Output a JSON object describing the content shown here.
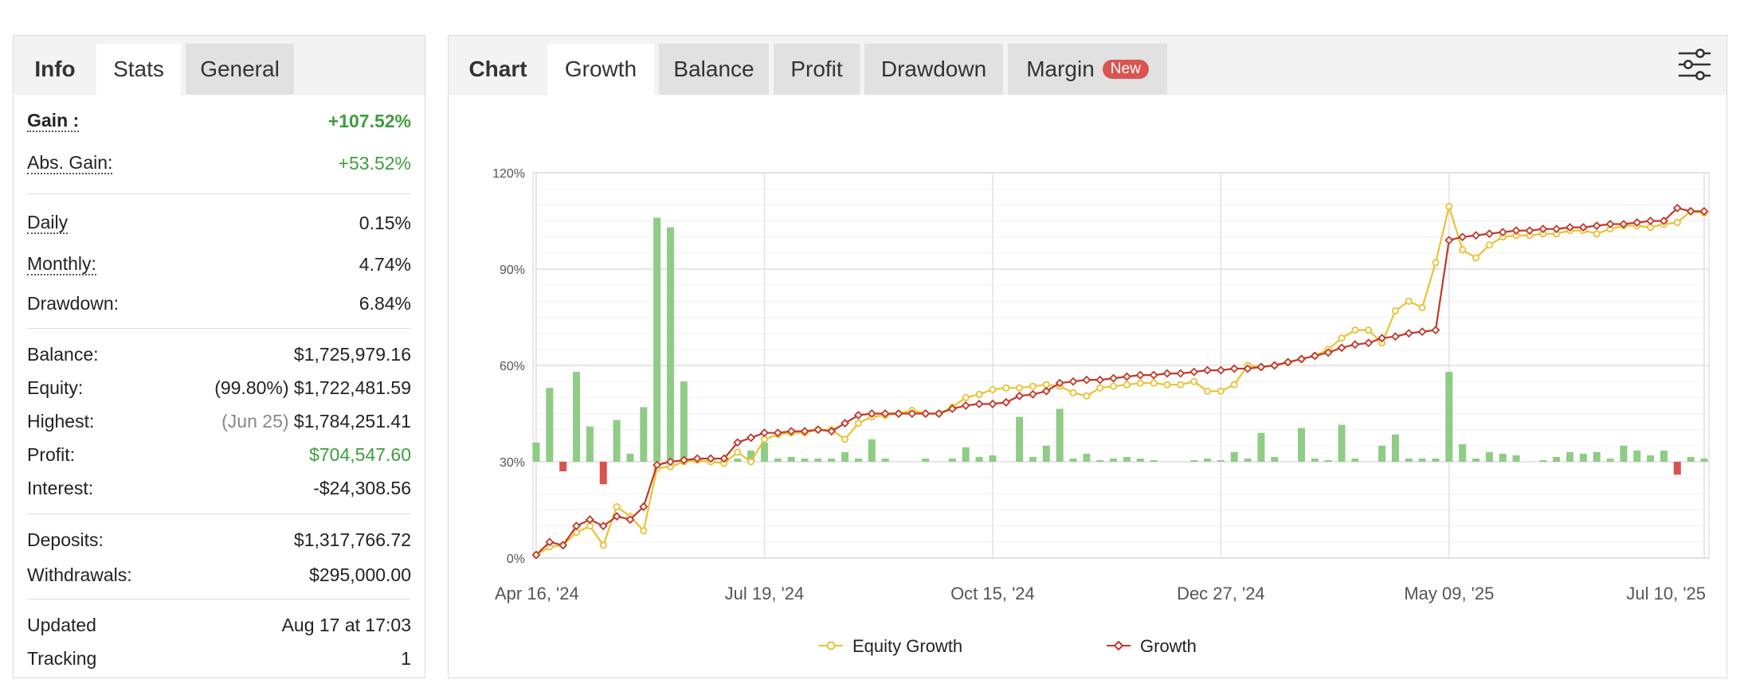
{
  "stats_panel": {
    "tabs": [
      {
        "label": "Info"
      },
      {
        "label": "Stats"
      },
      {
        "label": "General"
      }
    ],
    "rows": {
      "gain": {
        "label": "Gain :",
        "value": "+107.52%"
      },
      "abs_gain": {
        "label": "Abs. Gain:",
        "value": "+53.52%"
      },
      "daily": {
        "label": "Daily",
        "value": "0.15%"
      },
      "monthly": {
        "label": "Monthly:",
        "value": "4.74%"
      },
      "drawdown": {
        "label": "Drawdown:",
        "value": "6.84%"
      },
      "balance": {
        "label": "Balance:",
        "value": "$1,725,979.16"
      },
      "equity": {
        "label": "Equity:",
        "note": "(99.80%)",
        "value": "$1,722,481.59"
      },
      "highest": {
        "label": "Highest:",
        "note": "(Jun 25)",
        "value": "$1,784,251.41"
      },
      "profit": {
        "label": "Profit:",
        "value": "$704,547.60"
      },
      "interest": {
        "label": "Interest:",
        "value": "-$24,308.56"
      },
      "deposits": {
        "label": "Deposits:",
        "value": "$1,317,766.72"
      },
      "withdrawals": {
        "label": "Withdrawals:",
        "value": "$295,000.00"
      },
      "updated": {
        "label": "Updated",
        "value": "Aug 17 at 17:03"
      },
      "tracking": {
        "label": "Tracking",
        "value": "1"
      }
    }
  },
  "chart_panel": {
    "tabs": [
      {
        "label": "Chart"
      },
      {
        "label": "Growth"
      },
      {
        "label": "Balance"
      },
      {
        "label": "Profit"
      },
      {
        "label": "Drawdown"
      },
      {
        "label": "Margin",
        "badge": "New"
      }
    ],
    "settings_icon": "sliders-icon"
  },
  "chart_data": {
    "type": "line",
    "ylim": [
      0,
      120
    ],
    "yticks": [
      0,
      30,
      60,
      90,
      120
    ],
    "ytick_labels": [
      "0%",
      "30%",
      "60%",
      "90%",
      "120%"
    ],
    "x_count": 88,
    "xticks": [
      0,
      17,
      34,
      51,
      68,
      87
    ],
    "xtick_labels": [
      "Apr 16, '24",
      "Jul 19, '24",
      "Oct 15, '24",
      "Dec 27, '24",
      "May 09, '25",
      "Jul 10, '25"
    ],
    "legend": [
      "Equity Growth",
      "Growth"
    ],
    "colors": {
      "equity": "#e8c233",
      "growth": "#c0392b",
      "bar_pos": "#8fcc85",
      "bar_neg": "#d9534f"
    },
    "series": [
      {
        "name": "Equity Growth",
        "values": [
          1,
          3.5,
          4,
          8,
          10,
          4,
          16,
          13,
          8.5,
          28,
          28.5,
          30,
          30.5,
          30,
          29.5,
          33,
          30,
          37,
          38.5,
          39,
          39,
          40,
          40,
          37,
          42,
          44,
          44.5,
          45,
          46,
          45,
          45,
          47,
          50,
          51,
          52.5,
          53,
          53,
          53.5,
          54,
          53.5,
          51.5,
          50.5,
          53,
          53.5,
          54,
          54.5,
          54.5,
          54,
          54,
          55,
          52,
          52,
          54,
          60,
          59.5,
          60,
          61,
          62,
          63,
          65,
          68.5,
          71,
          71,
          67,
          77,
          80,
          78,
          92,
          109.5,
          96,
          93.5,
          97.5,
          100,
          100.5,
          100.5,
          101,
          101,
          102,
          102,
          101,
          102.5,
          103.5,
          103.5,
          103,
          104,
          104.5,
          108,
          107.5
        ]
      },
      {
        "name": "Growth",
        "values": [
          1,
          5,
          4,
          10,
          12,
          10,
          13,
          12,
          16,
          29,
          30,
          30.5,
          31,
          31,
          31,
          36,
          37.5,
          39,
          39,
          39.5,
          39.5,
          40,
          39.5,
          42,
          44.5,
          45,
          45,
          45,
          45,
          45,
          45,
          46.5,
          47.5,
          48,
          48,
          48.5,
          50.5,
          51,
          52,
          54.5,
          55,
          55.5,
          55.5,
          56,
          56.5,
          57,
          57,
          57.5,
          57.5,
          58,
          58.5,
          58.5,
          59,
          59,
          59.5,
          60,
          61,
          62,
          63,
          64,
          65.5,
          66.5,
          67,
          68.5,
          69,
          70,
          70.5,
          71,
          99,
          100,
          100.5,
          101,
          101.5,
          102,
          102,
          102.5,
          102.5,
          103,
          103,
          103.5,
          104,
          104,
          104.5,
          105,
          105,
          109,
          108,
          108
        ]
      },
      {
        "name": "",
        "values": [
          6,
          23,
          -3,
          28,
          11,
          -7,
          13,
          2.5,
          17,
          76,
          73,
          25,
          1,
          1,
          1,
          1,
          3.5,
          6,
          1,
          1.5,
          1,
          1,
          1,
          3,
          1,
          7,
          1,
          0,
          0,
          1,
          0,
          1,
          4.5,
          1.5,
          2,
          0,
          14,
          1.5,
          5,
          16.5,
          1,
          2.5,
          0.5,
          1,
          1.5,
          1,
          0.5,
          0,
          0,
          0.5,
          1,
          0.5,
          3,
          1,
          9,
          1.5,
          0,
          10.5,
          1,
          0.5,
          11.5,
          1,
          0,
          5,
          8.5,
          1,
          1,
          1,
          28,
          5.5,
          1,
          3,
          2.5,
          2,
          0,
          0.5,
          1.5,
          3,
          2.5,
          3,
          1,
          5,
          3.5,
          2,
          3.5,
          -4,
          1.5,
          1
        ]
      }
    ]
  }
}
